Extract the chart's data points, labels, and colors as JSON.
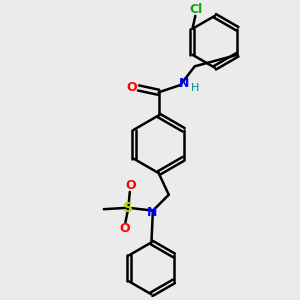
{
  "bg_color": "#ebebeb",
  "line_color": "#000000",
  "bond_width": 1.8,
  "atom_colors": {
    "O": "#ff0000",
    "N": "#0000ff",
    "H": "#008b8b",
    "S": "#cccc00",
    "Cl": "#00aa00"
  }
}
